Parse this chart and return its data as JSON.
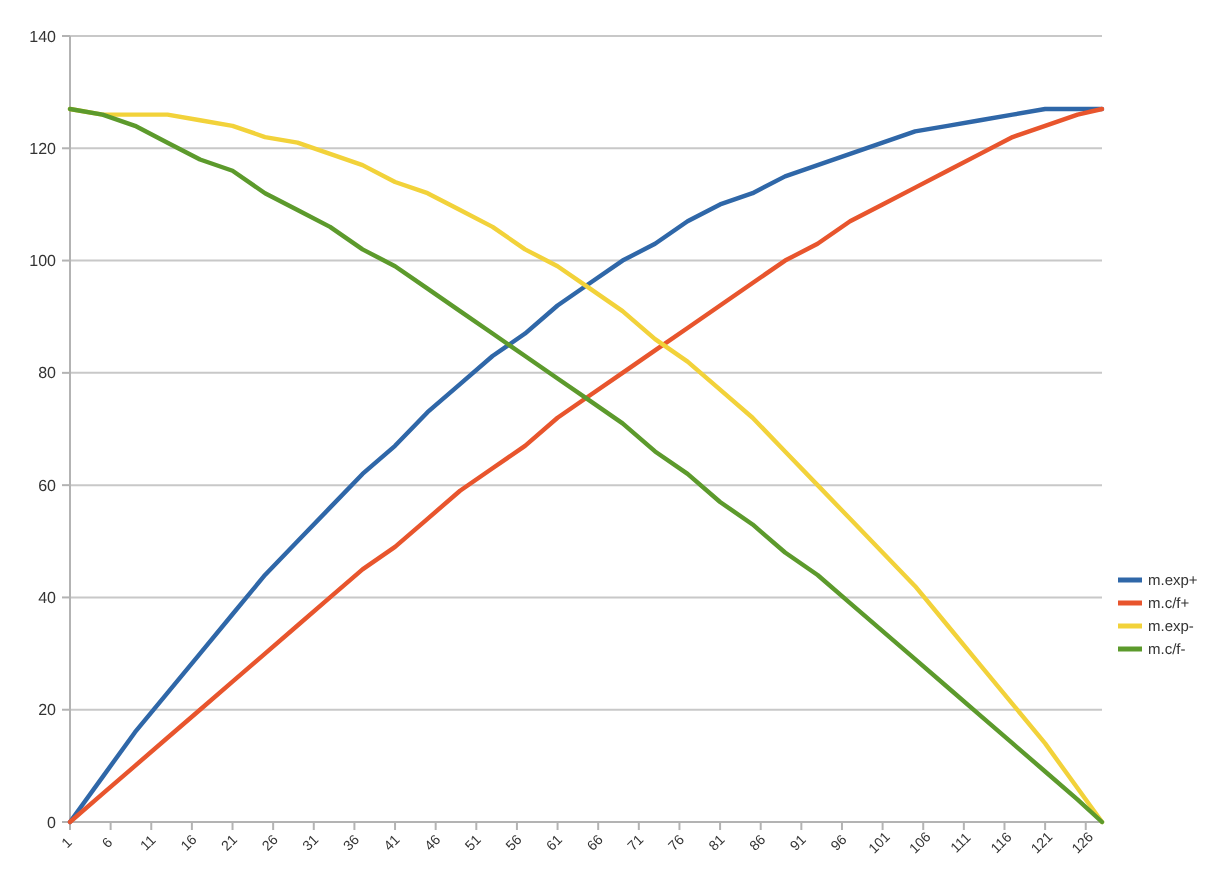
{
  "chart_data": {
    "type": "line",
    "x": [
      1,
      5,
      9,
      13,
      17,
      21,
      25,
      29,
      33,
      37,
      41,
      45,
      49,
      53,
      57,
      61,
      65,
      69,
      73,
      77,
      81,
      85,
      89,
      93,
      97,
      101,
      105,
      109,
      113,
      117,
      121,
      125,
      128
    ],
    "xlim": [
      1,
      128
    ],
    "xticks": [
      1,
      6,
      11,
      16,
      21,
      26,
      31,
      36,
      41,
      46,
      51,
      56,
      61,
      66,
      71,
      76,
      81,
      86,
      91,
      96,
      101,
      106,
      111,
      116,
      121,
      126
    ],
    "ylim": [
      0,
      140
    ],
    "yticks": [
      0,
      20,
      40,
      60,
      80,
      100,
      120,
      140
    ],
    "grid": "y",
    "legend": "right",
    "marker": "none",
    "line_style": "solid",
    "series": [
      {
        "name": "m.exp+",
        "color": "#2f67a8",
        "values": [
          0,
          8,
          16,
          23,
          30,
          37,
          44,
          50,
          56,
          62,
          67,
          73,
          78,
          83,
          87,
          92,
          96,
          100,
          103,
          107,
          110,
          112,
          115,
          117,
          119,
          121,
          123,
          124,
          125,
          126,
          127,
          127,
          127
        ]
      },
      {
        "name": "m.c/f+",
        "color": "#e8552d",
        "values": [
          0,
          5,
          10,
          15,
          20,
          25,
          30,
          35,
          40,
          45,
          49,
          54,
          59,
          63,
          67,
          72,
          76,
          80,
          84,
          88,
          92,
          96,
          100,
          103,
          107,
          110,
          113,
          116,
          119,
          122,
          124,
          126,
          127
        ]
      },
      {
        "name": "m.exp-",
        "color": "#f2d23a",
        "values": [
          127,
          126,
          126,
          126,
          125,
          124,
          122,
          121,
          119,
          117,
          114,
          112,
          109,
          106,
          102,
          99,
          95,
          91,
          86,
          82,
          77,
          72,
          66,
          60,
          54,
          48,
          42,
          35,
          28,
          21,
          14,
          6,
          0
        ]
      },
      {
        "name": "m.c/f-",
        "color": "#5c9a2c",
        "values": [
          127,
          126,
          124,
          121,
          118,
          116,
          112,
          109,
          106,
          102,
          99,
          95,
          91,
          87,
          83,
          79,
          75,
          71,
          66,
          62,
          57,
          53,
          48,
          44,
          39,
          34,
          29,
          24,
          19,
          14,
          9,
          4,
          0
        ]
      }
    ]
  }
}
